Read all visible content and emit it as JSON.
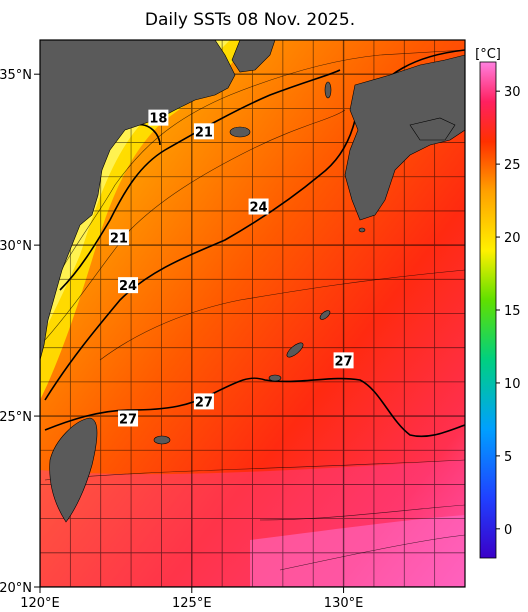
{
  "title": "Daily SSTs 08 Nov. 2025.",
  "map": {
    "lon_range": [
      120,
      134
    ],
    "lat_range": [
      20,
      36
    ],
    "lon_labels": [
      "120°E",
      "125°E",
      "130°E"
    ],
    "lat_labels": [
      "20°N",
      "25°N",
      "30°N",
      "35°N"
    ],
    "contour_labels": [
      {
        "text": "18",
        "lon": 123.9,
        "lat": 33.7
      },
      {
        "text": "21",
        "lon": 125.4,
        "lat": 33.3
      },
      {
        "text": "24",
        "lon": 127.2,
        "lat": 31.1
      },
      {
        "text": "21",
        "lon": 122.6,
        "lat": 30.2
      },
      {
        "text": "24",
        "lon": 122.9,
        "lat": 28.8
      },
      {
        "text": "27",
        "lon": 122.9,
        "lat": 24.9
      },
      {
        "text": "27",
        "lon": 125.4,
        "lat": 25.4
      },
      {
        "text": "27",
        "lon": 130.0,
        "lat": 26.6
      }
    ]
  },
  "colorbar": {
    "unit": "[°C]",
    "ticks": [
      "0",
      "5",
      "10",
      "15",
      "20",
      "25",
      "30"
    ],
    "range": [
      -2,
      32
    ]
  },
  "colors": {
    "land": "#5a5a5a",
    "grid": "#000000"
  }
}
